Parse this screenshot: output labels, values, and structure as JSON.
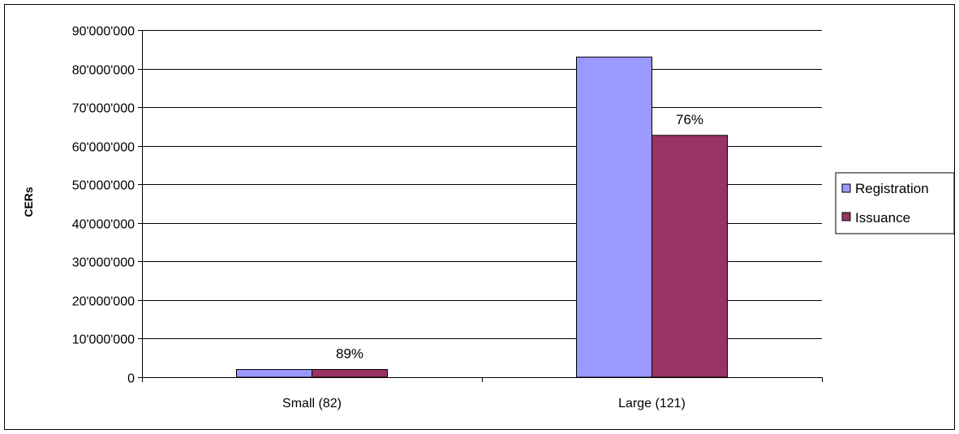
{
  "chart_data": {
    "type": "bar",
    "title": "",
    "xlabel": "",
    "ylabel": "CERs",
    "ylim": [
      0,
      90000000
    ],
    "y_tick_labels": [
      "0",
      "10'000'000",
      "20'000'000",
      "30'000'000",
      "40'000'000",
      "50'000'000",
      "60'000'000",
      "70'000'000",
      "80'000'000",
      "90'000'000"
    ],
    "categories": [
      "Small (82)",
      "Large (121)"
    ],
    "series": [
      {
        "name": "Registration",
        "color": "#9999ff",
        "values": [
          2000000,
          83000000
        ]
      },
      {
        "name": "Issuance",
        "color": "#993366",
        "values": [
          2000000,
          62700000
        ]
      }
    ],
    "data_labels": [
      "89%",
      "76%"
    ],
    "grid": true,
    "legend": "right"
  }
}
